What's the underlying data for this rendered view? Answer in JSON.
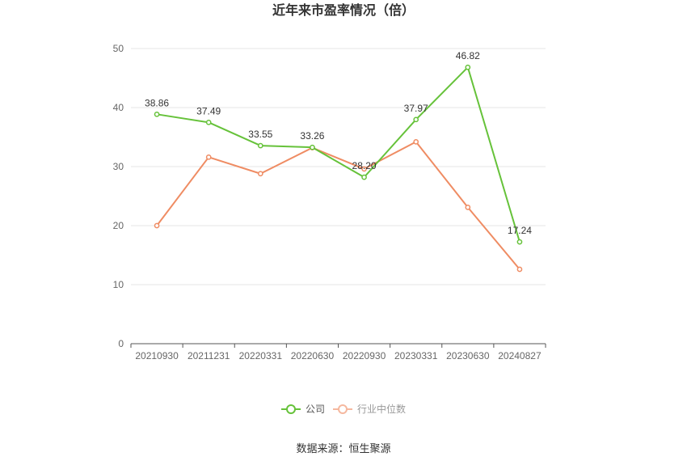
{
  "chart_data": {
    "type": "line",
    "title": "近年来市盈率情况（倍）",
    "categories": [
      "20210930",
      "20211231",
      "20220331",
      "20220630",
      "20220930",
      "20230331",
      "20230630",
      "20240827"
    ],
    "series": [
      {
        "name": "公司",
        "color": "#66c23a",
        "values": [
          38.86,
          37.49,
          33.55,
          33.26,
          28.2,
          37.97,
          46.82,
          17.24
        ],
        "labels": [
          "38.86",
          "37.49",
          "33.55",
          "33.26",
          "28.20",
          "37.97",
          "46.82",
          "17.24"
        ]
      },
      {
        "name": "行业中位数",
        "color": "#ef8c63",
        "values": [
          20.0,
          31.6,
          28.8,
          33.2,
          29.6,
          34.2,
          23.1,
          12.6
        ]
      }
    ],
    "ylim": [
      0,
      50
    ],
    "yticks": [
      "0",
      "10",
      "20",
      "30",
      "40",
      "50"
    ],
    "grid": true,
    "legend_position": "bottom"
  },
  "footer": {
    "source": "数据来源：恒生聚源"
  }
}
